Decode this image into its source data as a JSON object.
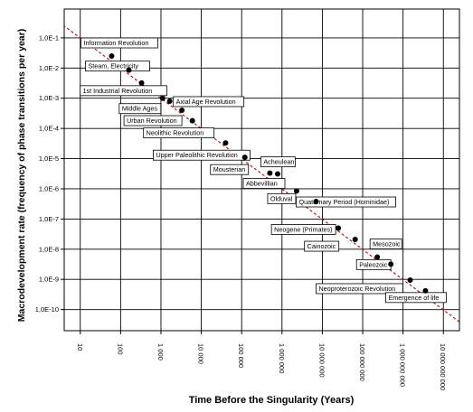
{
  "chart_data": {
    "type": "scatter",
    "title": "",
    "xlabel": "Time Before the Singularity (Years)",
    "ylabel": "Macrodevelopment rate (frequency of phase transitions per year)",
    "y_scale": "log",
    "x_scale": "log",
    "y_tick_labels": [
      "1,0E-1",
      "1,0E-2",
      "1,0E-3",
      "1,0E-4",
      "1,0E-5",
      "1,0E-6",
      "1,0E-7",
      "1,0E-8",
      "1,0E-9",
      "1,0E-10"
    ],
    "y_tick_values": [
      0.1,
      0.01,
      0.001,
      0.0001,
      1e-05,
      1e-06,
      1e-07,
      1e-08,
      1e-09,
      1e-10
    ],
    "x_tick_labels": [
      "10",
      "100",
      "1 000",
      "10 000",
      "100 000",
      "1 000 000",
      "10 000 000",
      "100 000 000",
      "1 000 000 000",
      "10 000 000 000"
    ],
    "x_tick_values": [
      10,
      100,
      1000,
      10000,
      100000,
      1000000,
      10000000,
      100000000,
      1000000000,
      10000000000
    ],
    "xlim": [
      4,
      25000000000
    ],
    "ylim": [
      2e-11,
      0.9
    ],
    "grid": true,
    "trendline": {
      "style": "dashed",
      "color": "#cc0000",
      "x": [
        3,
        25000000000
      ],
      "y": [
        0.33,
        3.92e-11
      ]
    },
    "points": [
      {
        "label": "Information Revolution",
        "x": 60,
        "y": 0.025
      },
      {
        "label": "Steam, Electricity",
        "x": 160,
        "y": 0.0085
      },
      {
        "label": "1st Industrial Revolution",
        "x": 330,
        "y": 0.0032
      },
      {
        "label": "Middle Ages",
        "x": 1100,
        "y": 0.001
      },
      {
        "label": "Axial Age Revolution",
        "x": 1650,
        "y": 0.0008
      },
      {
        "label": "Urban Revolution",
        "x": 3300,
        "y": 0.0004
      },
      {
        "label": "Neolithic Revolution",
        "x": 6000,
        "y": 0.00018
      },
      {
        "label": "Upper Paleolithic Revolution",
        "x": 40000,
        "y": 3.3e-05
      },
      {
        "label": "Mousterian",
        "x": 120000,
        "y": 1.1e-05
      },
      {
        "label": "Acheulean",
        "x": 500000,
        "y": 3.3e-06
      },
      {
        "label": "Abbevillian",
        "x": 780000,
        "y": 3.1e-06
      },
      {
        "label": "Olduval",
        "x": 2300000,
        "y": 8.5e-07
      },
      {
        "label": "Quaternary Period (Hominidae)",
        "x": 7000000,
        "y": 3.8e-07
      },
      {
        "label": "Neogene (Primates)",
        "x": 25000000,
        "y": 5e-08
      },
      {
        "label": "Cainozoic",
        "x": 65000000,
        "y": 2.1e-08
      },
      {
        "label": "Mesozoic",
        "x": 230000000,
        "y": 5.5e-09
      },
      {
        "label": "Paleozoic",
        "x": 500000000,
        "y": 3.2e-09
      },
      {
        "label": "Neoproterozoic Revolution",
        "x": 1500000000,
        "y": 9.5e-10
      },
      {
        "label": "Emergence of life",
        "x": 3600000000,
        "y": 4.2e-10
      }
    ]
  }
}
